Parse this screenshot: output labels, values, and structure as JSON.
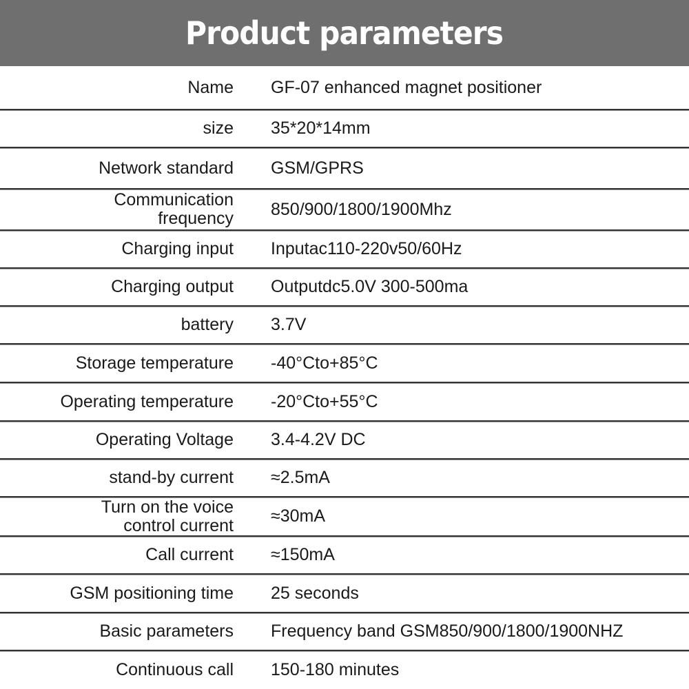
{
  "title": "Product parameters",
  "rows": [
    {
      "label": "Name",
      "value": "GF-07 enhanced magnet positioner"
    },
    {
      "label": "size",
      "value": "35*20*14mm"
    },
    {
      "label": "Network standard",
      "value": "GSM/GPRS"
    },
    {
      "label": "Communication\nfrequency",
      "value": "850/900/1800/1900Mhz"
    },
    {
      "label": "Charging input",
      "value": "Inputac110-220v50/60Hz"
    },
    {
      "label": "Charging output",
      "value": "Outputdc5.0V 300-500ma"
    },
    {
      "label": "battery",
      "value": "3.7V"
    },
    {
      "label": "Storage temperature",
      "value": "-40°Cto+85°C"
    },
    {
      "label": "Operating temperature",
      "value": "-20°Cto+55°C"
    },
    {
      "label": "Operating Voltage",
      "value": "3.4-4.2V DC"
    },
    {
      "label": "stand-by current",
      "value": "≈2.5mA"
    },
    {
      "label": "Turn on the voice\ncontrol current",
      "value": "≈30mA"
    },
    {
      "label": "Call current",
      "value": "≈150mA"
    },
    {
      "label": "GSM positioning time",
      "value": "25 seconds"
    },
    {
      "label": "Basic parameters",
      "value": "Frequency band GSM850/900/1800/1900NHZ"
    },
    {
      "label": "Continuous call",
      "value": "150-180 minutes"
    }
  ]
}
